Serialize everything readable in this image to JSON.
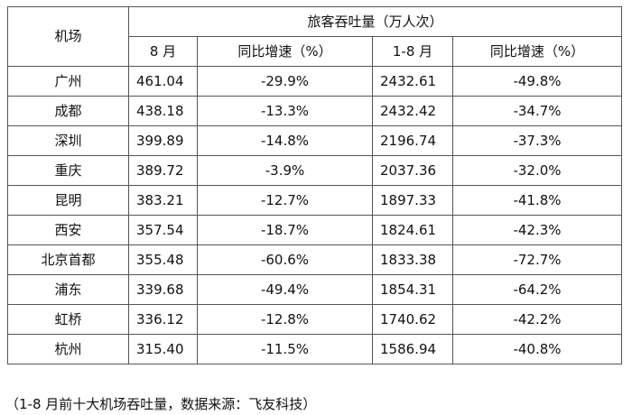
{
  "table": {
    "airport_header": "机场",
    "group_header": "旅客吞吐量（万人次）",
    "col_aug": "8 月",
    "col_aug_yoy": "同比增速（%）",
    "col_ytd": "1-8 月",
    "col_ytd_yoy": "同比增速（%）",
    "rows": [
      {
        "airport": "广州",
        "aug": "461.04",
        "aug_yoy": "-29.9%",
        "ytd": "2432.61",
        "ytd_yoy": "-49.8%"
      },
      {
        "airport": "成都",
        "aug": "438.18",
        "aug_yoy": "-13.3%",
        "ytd": "2432.42",
        "ytd_yoy": "-34.7%"
      },
      {
        "airport": "深圳",
        "aug": "399.89",
        "aug_yoy": "-14.8%",
        "ytd": "2196.74",
        "ytd_yoy": "-37.3%"
      },
      {
        "airport": "重庆",
        "aug": "389.72",
        "aug_yoy": "-3.9%",
        "ytd": "2037.36",
        "ytd_yoy": "-32.0%"
      },
      {
        "airport": "昆明",
        "aug": "383.21",
        "aug_yoy": "-12.7%",
        "ytd": "1897.33",
        "ytd_yoy": "-41.8%"
      },
      {
        "airport": "西安",
        "aug": "357.54",
        "aug_yoy": "-18.7%",
        "ytd": "1824.61",
        "ytd_yoy": "-42.3%"
      },
      {
        "airport": "北京首都",
        "aug": "355.48",
        "aug_yoy": "-60.6%",
        "ytd": "1833.38",
        "ytd_yoy": "-72.7%"
      },
      {
        "airport": "浦东",
        "aug": "339.68",
        "aug_yoy": "-49.4%",
        "ytd": "1854.31",
        "ytd_yoy": "-64.2%"
      },
      {
        "airport": "虹桥",
        "aug": "336.12",
        "aug_yoy": "-12.8%",
        "ytd": "1740.62",
        "ytd_yoy": "-42.2%"
      },
      {
        "airport": "杭州",
        "aug": "315.40",
        "aug_yoy": "-11.5%",
        "ytd": "1586.94",
        "ytd_yoy": "-40.8%"
      }
    ]
  },
  "footnote": "（1-8 月前十大机场吞吐量，数据来源：飞友科技）"
}
